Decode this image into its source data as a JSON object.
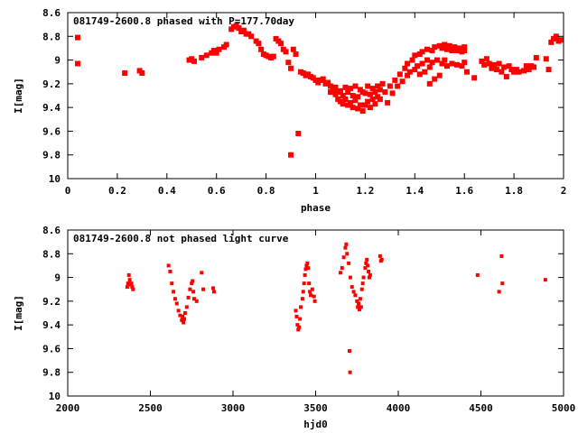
{
  "chart_data": [
    {
      "type": "scatter",
      "title": "081749-2600.8 phased with P=177.70day",
      "xlabel": "phase",
      "ylabel": "I[mag]",
      "xlim": [
        0,
        2
      ],
      "ylim": [
        8.6,
        10
      ],
      "y_inverted": true,
      "xticks": [
        "0",
        "0.2",
        "0.4",
        "0.6",
        "0.8",
        "1",
        "1.2",
        "1.4",
        "1.6",
        "1.8",
        "2"
      ],
      "xtick_values": [
        0,
        0.2,
        0.4,
        0.6,
        0.8,
        1,
        1.2,
        1.4,
        1.6,
        1.8,
        2
      ],
      "yticks": [
        "8.6",
        "8.8",
        "9",
        "9.2",
        "9.4",
        "9.6",
        "9.8",
        "10"
      ],
      "ytick_values": [
        8.6,
        8.8,
        9,
        9.2,
        9.4,
        9.6,
        9.8,
        10
      ],
      "grid": false,
      "marker_color": "#ff0000",
      "marker_size": 3,
      "points": [
        [
          0.04,
          8.81
        ],
        [
          0.04,
          9.03
        ],
        [
          0.23,
          9.11
        ],
        [
          0.29,
          9.09
        ],
        [
          0.3,
          9.11
        ],
        [
          0.49,
          9.0
        ],
        [
          0.5,
          8.99
        ],
        [
          0.51,
          9.01
        ],
        [
          0.54,
          8.98
        ],
        [
          0.56,
          8.96
        ],
        [
          0.58,
          8.94
        ],
        [
          0.59,
          8.92
        ],
        [
          0.6,
          8.94
        ],
        [
          0.61,
          8.91
        ],
        [
          0.63,
          8.89
        ],
        [
          0.64,
          8.87
        ],
        [
          0.66,
          8.74
        ],
        [
          0.67,
          8.72
        ],
        [
          0.68,
          8.71
        ],
        [
          0.69,
          8.73
        ],
        [
          0.7,
          8.76
        ],
        [
          0.71,
          8.75
        ],
        [
          0.72,
          8.78
        ],
        [
          0.73,
          8.78
        ],
        [
          0.74,
          8.8
        ],
        [
          0.76,
          8.84
        ],
        [
          0.77,
          8.86
        ],
        [
          0.78,
          8.91
        ],
        [
          0.79,
          8.95
        ],
        [
          0.8,
          8.96
        ],
        [
          0.81,
          8.97
        ],
        [
          0.82,
          8.98
        ],
        [
          0.83,
          8.97
        ],
        [
          0.84,
          8.82
        ],
        [
          0.85,
          8.84
        ],
        [
          0.86,
          8.86
        ],
        [
          0.87,
          8.91
        ],
        [
          0.88,
          8.93
        ],
        [
          0.89,
          9.02
        ],
        [
          0.9,
          9.07
        ],
        [
          0.9,
          9.8
        ],
        [
          0.91,
          8.91
        ],
        [
          0.92,
          8.95
        ],
        [
          0.93,
          9.62
        ],
        [
          0.94,
          9.1
        ],
        [
          0.95,
          9.11
        ],
        [
          0.96,
          9.13
        ],
        [
          0.97,
          9.12
        ],
        [
          0.98,
          9.14
        ],
        [
          0.99,
          9.15
        ],
        [
          1.0,
          9.17
        ],
        [
          1.01,
          9.19
        ],
        [
          1.02,
          9.17
        ],
        [
          1.03,
          9.16
        ],
        [
          1.04,
          9.2
        ],
        [
          1.05,
          9.19
        ],
        [
          1.06,
          9.22
        ],
        [
          1.06,
          9.27
        ],
        [
          1.07,
          9.25
        ],
        [
          1.08,
          9.23
        ],
        [
          1.08,
          9.29
        ],
        [
          1.09,
          9.27
        ],
        [
          1.09,
          9.33
        ],
        [
          1.1,
          9.26
        ],
        [
          1.1,
          9.35
        ],
        [
          1.11,
          9.3
        ],
        [
          1.11,
          9.37
        ],
        [
          1.12,
          9.23
        ],
        [
          1.12,
          9.33
        ],
        [
          1.13,
          9.27
        ],
        [
          1.13,
          9.38
        ],
        [
          1.14,
          9.24
        ],
        [
          1.14,
          9.36
        ],
        [
          1.15,
          9.3
        ],
        [
          1.15,
          9.4
        ],
        [
          1.16,
          9.22
        ],
        [
          1.16,
          9.34
        ],
        [
          1.17,
          9.31
        ],
        [
          1.17,
          9.41
        ],
        [
          1.18,
          9.25
        ],
        [
          1.18,
          9.38
        ],
        [
          1.19,
          9.27
        ],
        [
          1.19,
          9.43
        ],
        [
          1.2,
          9.28
        ],
        [
          1.2,
          9.38
        ],
        [
          1.21,
          9.22
        ],
        [
          1.21,
          9.35
        ],
        [
          1.22,
          9.29
        ],
        [
          1.22,
          9.4
        ],
        [
          1.23,
          9.24
        ],
        [
          1.23,
          9.33
        ],
        [
          1.24,
          9.27
        ],
        [
          1.24,
          9.37
        ],
        [
          1.25,
          9.22
        ],
        [
          1.25,
          9.31
        ],
        [
          1.26,
          9.25
        ],
        [
          1.26,
          9.33
        ],
        [
          1.27,
          9.2
        ],
        [
          1.28,
          9.27
        ],
        [
          1.29,
          9.36
        ],
        [
          1.3,
          9.22
        ],
        [
          1.31,
          9.28
        ],
        [
          1.32,
          9.17
        ],
        [
          1.33,
          9.22
        ],
        [
          1.34,
          9.12
        ],
        [
          1.35,
          9.18
        ],
        [
          1.36,
          9.07
        ],
        [
          1.37,
          9.13
        ],
        [
          1.37,
          9.03
        ],
        [
          1.38,
          9.1
        ],
        [
          1.39,
          9.0
        ],
        [
          1.4,
          9.08
        ],
        [
          1.4,
          8.96
        ],
        [
          1.41,
          9.05
        ],
        [
          1.42,
          8.95
        ],
        [
          1.42,
          9.12
        ],
        [
          1.43,
          9.03
        ],
        [
          1.43,
          8.93
        ],
        [
          1.44,
          9.1
        ],
        [
          1.45,
          9.0
        ],
        [
          1.45,
          8.91
        ],
        [
          1.46,
          9.06
        ],
        [
          1.46,
          9.2
        ],
        [
          1.47,
          8.92
        ],
        [
          1.47,
          9.02
        ],
        [
          1.48,
          9.16
        ],
        [
          1.48,
          8.89
        ],
        [
          1.49,
          9.0
        ],
        [
          1.5,
          9.13
        ],
        [
          1.5,
          8.88
        ],
        [
          1.51,
          9.03
        ],
        [
          1.51,
          8.9
        ],
        [
          1.52,
          9.0
        ],
        [
          1.52,
          8.87
        ],
        [
          1.53,
          9.05
        ],
        [
          1.53,
          8.91
        ],
        [
          1.54,
          8.88
        ],
        [
          1.55,
          9.03
        ],
        [
          1.55,
          8.92
        ],
        [
          1.56,
          8.89
        ],
        [
          1.57,
          9.04
        ],
        [
          1.57,
          8.92
        ],
        [
          1.58,
          8.9
        ],
        [
          1.59,
          9.05
        ],
        [
          1.59,
          8.93
        ],
        [
          1.6,
          8.89
        ],
        [
          1.6,
          8.92
        ],
        [
          1.6,
          9.02
        ],
        [
          1.61,
          9.1
        ],
        [
          1.64,
          9.15
        ],
        [
          1.67,
          9.01
        ],
        [
          1.68,
          9.04
        ],
        [
          1.69,
          8.99
        ],
        [
          1.7,
          9.03
        ],
        [
          1.71,
          9.07
        ],
        [
          1.72,
          9.04
        ],
        [
          1.73,
          9.08
        ],
        [
          1.74,
          9.03
        ],
        [
          1.75,
          9.1
        ],
        [
          1.76,
          9.06
        ],
        [
          1.77,
          9.14
        ],
        [
          1.78,
          9.05
        ],
        [
          1.79,
          9.08
        ],
        [
          1.8,
          9.1
        ],
        [
          1.81,
          9.08
        ],
        [
          1.82,
          9.1
        ],
        [
          1.84,
          9.09
        ],
        [
          1.85,
          9.05
        ],
        [
          1.86,
          9.08
        ],
        [
          1.87,
          9.05
        ],
        [
          1.88,
          9.06
        ],
        [
          1.89,
          8.98
        ],
        [
          1.93,
          8.99
        ],
        [
          1.94,
          9.08
        ],
        [
          1.95,
          8.85
        ],
        [
          1.96,
          8.82
        ],
        [
          1.97,
          8.8
        ],
        [
          1.98,
          8.84
        ],
        [
          1.99,
          8.83
        ]
      ]
    },
    {
      "type": "scatter",
      "title": "081749-2600.8 not phased light curve",
      "xlabel": "hjd0",
      "ylabel": "I[mag]",
      "xlim": [
        2000,
        5000
      ],
      "ylim": [
        8.6,
        10
      ],
      "y_inverted": true,
      "xticks": [
        "2000",
        "2500",
        "3000",
        "3500",
        "4000",
        "4500",
        "5000"
      ],
      "xtick_values": [
        2000,
        2500,
        3000,
        3500,
        4000,
        4500,
        5000
      ],
      "yticks": [
        "8.6",
        "8.8",
        "9",
        "9.2",
        "9.4",
        "9.6",
        "9.8",
        "10"
      ],
      "ytick_values": [
        8.6,
        8.8,
        9,
        9.2,
        9.4,
        9.6,
        9.8,
        10
      ],
      "grid": false,
      "marker_color": "#ff0000",
      "marker_size": 2,
      "points": [
        [
          2360,
          9.08
        ],
        [
          2365,
          9.05
        ],
        [
          2370,
          8.98
        ],
        [
          2375,
          9.02
        ],
        [
          2380,
          9.06
        ],
        [
          2385,
          9.05
        ],
        [
          2390,
          9.08
        ],
        [
          2395,
          9.1
        ],
        [
          2610,
          8.9
        ],
        [
          2620,
          8.95
        ],
        [
          2630,
          9.05
        ],
        [
          2640,
          9.12
        ],
        [
          2650,
          9.18
        ],
        [
          2660,
          9.22
        ],
        [
          2670,
          9.28
        ],
        [
          2680,
          9.32
        ],
        [
          2690,
          9.36
        ],
        [
          2695,
          9.33
        ],
        [
          2700,
          9.38
        ],
        [
          2705,
          9.35
        ],
        [
          2710,
          9.3
        ],
        [
          2720,
          9.25
        ],
        [
          2730,
          9.17
        ],
        [
          2740,
          9.1
        ],
        [
          2750,
          9.05
        ],
        [
          2755,
          9.03
        ],
        [
          2760,
          9.12
        ],
        [
          2765,
          9.18
        ],
        [
          2780,
          9.2
        ],
        [
          2810,
          8.96
        ],
        [
          2820,
          9.1
        ],
        [
          2880,
          9.09
        ],
        [
          2885,
          9.12
        ],
        [
          3380,
          9.28
        ],
        [
          3385,
          9.33
        ],
        [
          3390,
          9.4
        ],
        [
          3395,
          9.44
        ],
        [
          3400,
          9.42
        ],
        [
          3405,
          9.35
        ],
        [
          3410,
          9.25
        ],
        [
          3420,
          9.18
        ],
        [
          3425,
          9.12
        ],
        [
          3430,
          9.05
        ],
        [
          3435,
          8.98
        ],
        [
          3440,
          8.93
        ],
        [
          3445,
          8.9
        ],
        [
          3450,
          8.88
        ],
        [
          3455,
          8.92
        ],
        [
          3460,
          9.05
        ],
        [
          3465,
          9.12
        ],
        [
          3470,
          9.15
        ],
        [
          3480,
          9.1
        ],
        [
          3490,
          9.16
        ],
        [
          3495,
          9.2
        ],
        [
          3650,
          8.96
        ],
        [
          3660,
          8.92
        ],
        [
          3670,
          8.83
        ],
        [
          3680,
          8.75
        ],
        [
          3685,
          8.72
        ],
        [
          3690,
          8.8
        ],
        [
          3700,
          8.88
        ],
        [
          3705,
          9.62
        ],
        [
          3708,
          9.8
        ],
        [
          3710,
          9.0
        ],
        [
          3720,
          9.08
        ],
        [
          3730,
          9.12
        ],
        [
          3740,
          9.15
        ],
        [
          3750,
          9.2
        ],
        [
          3755,
          9.25
        ],
        [
          3760,
          9.22
        ],
        [
          3765,
          9.27
        ],
        [
          3770,
          9.18
        ],
        [
          3775,
          9.25
        ],
        [
          3780,
          9.1
        ],
        [
          3785,
          9.05
        ],
        [
          3790,
          9.0
        ],
        [
          3800,
          8.92
        ],
        [
          3805,
          8.88
        ],
        [
          3810,
          8.85
        ],
        [
          3815,
          8.9
        ],
        [
          3820,
          8.95
        ],
        [
          3825,
          9.0
        ],
        [
          3830,
          8.98
        ],
        [
          3890,
          8.82
        ],
        [
          3895,
          8.86
        ],
        [
          3900,
          8.85
        ],
        [
          4480,
          8.98
        ],
        [
          4610,
          9.12
        ],
        [
          4625,
          8.82
        ],
        [
          4630,
          9.05
        ],
        [
          4890,
          9.02
        ]
      ]
    }
  ]
}
